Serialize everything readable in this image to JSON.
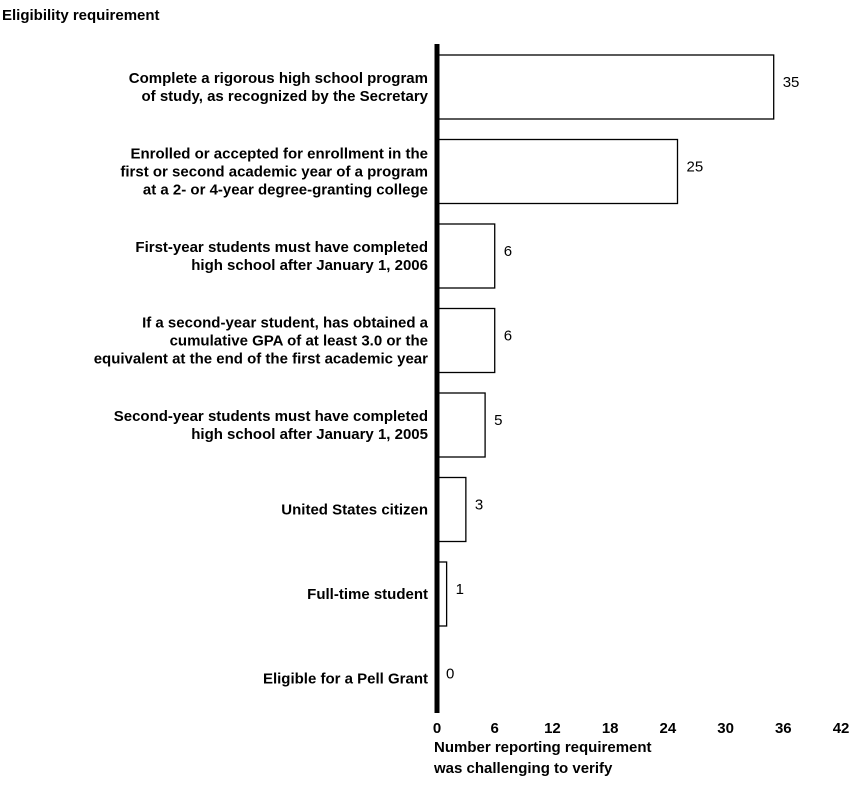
{
  "chart_data": {
    "type": "bar",
    "orientation": "horizontal",
    "title": "Eligibility requirement",
    "xlabel_lines": [
      "Number reporting requirement",
      "was challenging to verify"
    ],
    "xlim": [
      0,
      42
    ],
    "xticks": [
      "0",
      "6",
      "12",
      "18",
      "24",
      "30",
      "36",
      "42"
    ],
    "categories": [
      [
        "Complete a rigorous high school program",
        "of study, as recognized by the Secretary"
      ],
      [
        "Enrolled or accepted for enrollment in the",
        "first or second academic year of a program",
        "at a 2- or 4-year degree-granting college"
      ],
      [
        "First-year students must have completed",
        "high school after January 1, 2006"
      ],
      [
        "If a second-year student, has obtained a",
        "cumulative GPA of at least 3.0 or the",
        "equivalent at the end of the first academic year"
      ],
      [
        "Second-year students must have completed",
        "high school after January 1, 2005"
      ],
      [
        "United States citizen"
      ],
      [
        "Full-time student"
      ],
      [
        "Eligible for a Pell Grant"
      ]
    ],
    "values": [
      35,
      25,
      6,
      6,
      5,
      3,
      1,
      0
    ],
    "value_labels": [
      "35",
      "25",
      "6",
      "6",
      "5",
      "3",
      "1",
      "0"
    ],
    "grid": false,
    "legend": "none"
  }
}
